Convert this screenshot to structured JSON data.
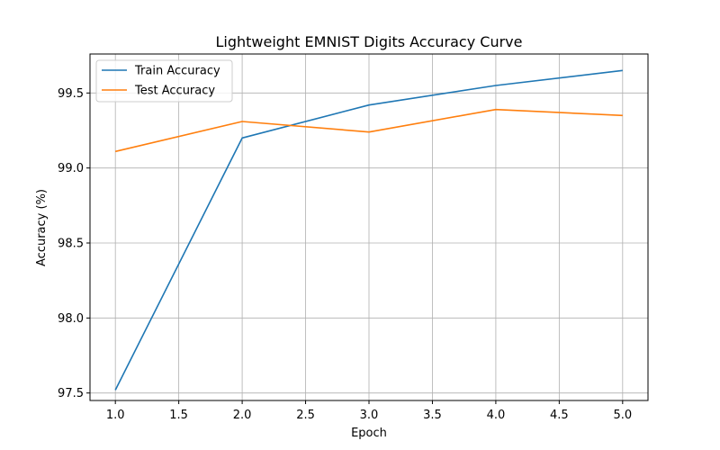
{
  "chart_data": {
    "type": "line",
    "title": "Lightweight EMNIST Digits Accuracy Curve",
    "xlabel": "Epoch",
    "ylabel": "Accuracy (%)",
    "x": [
      1,
      2,
      3,
      4,
      5
    ],
    "xlim": [
      0.8,
      5.2
    ],
    "ylim": [
      97.45,
      99.76
    ],
    "xticks": [
      1.0,
      1.5,
      2.0,
      2.5,
      3.0,
      3.5,
      4.0,
      4.5,
      5.0
    ],
    "xtick_labels": [
      "1.0",
      "1.5",
      "2.0",
      "2.5",
      "3.0",
      "3.5",
      "4.0",
      "4.5",
      "5.0"
    ],
    "yticks": [
      97.5,
      98.0,
      98.5,
      99.0,
      99.5
    ],
    "ytick_labels": [
      "97.5",
      "98.0",
      "98.5",
      "99.0",
      "99.5"
    ],
    "grid": true,
    "legend_position": "upper-left",
    "series": [
      {
        "name": "Train Accuracy",
        "color": "#1f77b4",
        "values": [
          97.52,
          99.2,
          99.42,
          99.55,
          99.65
        ]
      },
      {
        "name": "Test Accuracy",
        "color": "#ff7f0e",
        "values": [
          99.11,
          99.31,
          99.24,
          99.39,
          99.35
        ]
      }
    ]
  }
}
